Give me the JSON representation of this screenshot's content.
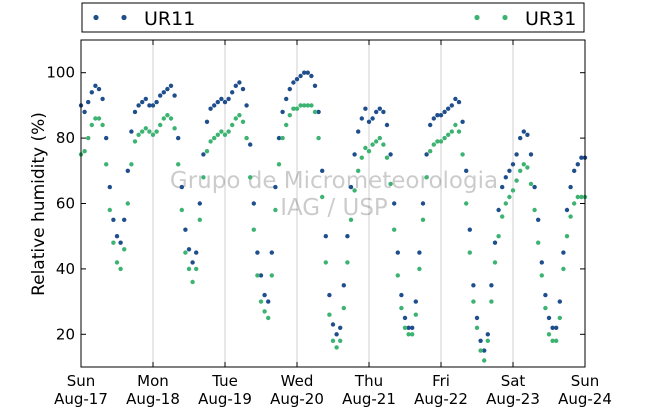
{
  "chart_data": {
    "type": "scatter",
    "ylabel": "Relative humidity (%)",
    "ylim": [
      10,
      110
    ],
    "yticks": [
      20,
      40,
      60,
      80,
      100
    ],
    "xlim": [
      0,
      7
    ],
    "xticks": [
      {
        "day": "Sun",
        "date": "Aug-17",
        "x": 0
      },
      {
        "day": "Mon",
        "date": "Aug-18",
        "x": 1
      },
      {
        "day": "Tue",
        "date": "Aug-19",
        "x": 2
      },
      {
        "day": "Wed",
        "date": "Aug-20",
        "x": 3
      },
      {
        "day": "Thu",
        "date": "Aug-21",
        "x": 4
      },
      {
        "day": "Fri",
        "date": "Aug-22",
        "x": 5
      },
      {
        "day": "Sat",
        "date": "Aug-23",
        "x": 6
      },
      {
        "day": "Sun",
        "date": "Aug-24",
        "x": 7
      }
    ],
    "grid": "vertical",
    "legend_position": "top",
    "watermark": [
      "Grupo de Micrometeorologia",
      "IAG / USP"
    ],
    "series": [
      {
        "name": "UR11",
        "color": "#1f4e8c",
        "points": [
          [
            0.0,
            90
          ],
          [
            0.05,
            88
          ],
          [
            0.1,
            91
          ],
          [
            0.15,
            94
          ],
          [
            0.2,
            96
          ],
          [
            0.25,
            95
          ],
          [
            0.3,
            92
          ],
          [
            0.35,
            80
          ],
          [
            0.4,
            65
          ],
          [
            0.45,
            55
          ],
          [
            0.5,
            50
          ],
          [
            0.55,
            48
          ],
          [
            0.6,
            55
          ],
          [
            0.65,
            70
          ],
          [
            0.7,
            82
          ],
          [
            0.75,
            88
          ],
          [
            0.8,
            90
          ],
          [
            0.85,
            91
          ],
          [
            0.9,
            92
          ],
          [
            0.95,
            90
          ],
          [
            1.0,
            90
          ],
          [
            1.05,
            91
          ],
          [
            1.1,
            93
          ],
          [
            1.15,
            94
          ],
          [
            1.2,
            95
          ],
          [
            1.25,
            96
          ],
          [
            1.3,
            93
          ],
          [
            1.35,
            80
          ],
          [
            1.4,
            65
          ],
          [
            1.45,
            52
          ],
          [
            1.5,
            46
          ],
          [
            1.55,
            42
          ],
          [
            1.6,
            45
          ],
          [
            1.65,
            60
          ],
          [
            1.7,
            75
          ],
          [
            1.75,
            85
          ],
          [
            1.8,
            89
          ],
          [
            1.85,
            90
          ],
          [
            1.9,
            91
          ],
          [
            1.95,
            92
          ],
          [
            2.0,
            91
          ],
          [
            2.05,
            92
          ],
          [
            2.1,
            94
          ],
          [
            2.15,
            96
          ],
          [
            2.2,
            97
          ],
          [
            2.25,
            95
          ],
          [
            2.3,
            90
          ],
          [
            2.35,
            78
          ],
          [
            2.4,
            60
          ],
          [
            2.45,
            45
          ],
          [
            2.5,
            38
          ],
          [
            2.55,
            32
          ],
          [
            2.6,
            30
          ],
          [
            2.65,
            45
          ],
          [
            2.7,
            65
          ],
          [
            2.75,
            80
          ],
          [
            2.8,
            88
          ],
          [
            2.85,
            92
          ],
          [
            2.9,
            95
          ],
          [
            2.95,
            97
          ],
          [
            3.0,
            98
          ],
          [
            3.05,
            99
          ],
          [
            3.1,
            100
          ],
          [
            3.15,
            100
          ],
          [
            3.2,
            99
          ],
          [
            3.25,
            96
          ],
          [
            3.3,
            88
          ],
          [
            3.35,
            70
          ],
          [
            3.4,
            50
          ],
          [
            3.45,
            32
          ],
          [
            3.5,
            23
          ],
          [
            3.55,
            20
          ],
          [
            3.6,
            22
          ],
          [
            3.65,
            35
          ],
          [
            3.7,
            50
          ],
          [
            3.75,
            65
          ],
          [
            3.8,
            75
          ],
          [
            3.85,
            82
          ],
          [
            3.9,
            86
          ],
          [
            3.95,
            89
          ],
          [
            4.0,
            85
          ],
          [
            4.05,
            86
          ],
          [
            4.1,
            88
          ],
          [
            4.15,
            89
          ],
          [
            4.2,
            88
          ],
          [
            4.25,
            84
          ],
          [
            4.3,
            75
          ],
          [
            4.35,
            60
          ],
          [
            4.4,
            45
          ],
          [
            4.45,
            32
          ],
          [
            4.5,
            25
          ],
          [
            4.55,
            22
          ],
          [
            4.6,
            22
          ],
          [
            4.65,
            30
          ],
          [
            4.7,
            45
          ],
          [
            4.75,
            60
          ],
          [
            4.8,
            75
          ],
          [
            4.85,
            84
          ],
          [
            4.9,
            86
          ],
          [
            4.95,
            87
          ],
          [
            5.0,
            87
          ],
          [
            5.05,
            88
          ],
          [
            5.1,
            89
          ],
          [
            5.15,
            90
          ],
          [
            5.2,
            92
          ],
          [
            5.25,
            91
          ],
          [
            5.3,
            85
          ],
          [
            5.35,
            70
          ],
          [
            5.4,
            52
          ],
          [
            5.45,
            35
          ],
          [
            5.5,
            25
          ],
          [
            5.55,
            18
          ],
          [
            5.6,
            15
          ],
          [
            5.65,
            20
          ],
          [
            5.7,
            35
          ],
          [
            5.75,
            48
          ],
          [
            5.8,
            58
          ],
          [
            5.85,
            65
          ],
          [
            5.9,
            68
          ],
          [
            5.95,
            70
          ],
          [
            6.0,
            72
          ],
          [
            6.05,
            75
          ],
          [
            6.1,
            80
          ],
          [
            6.15,
            82
          ],
          [
            6.2,
            81
          ],
          [
            6.25,
            75
          ],
          [
            6.3,
            65
          ],
          [
            6.35,
            55
          ],
          [
            6.4,
            42
          ],
          [
            6.45,
            32
          ],
          [
            6.5,
            25
          ],
          [
            6.55,
            22
          ],
          [
            6.6,
            22
          ],
          [
            6.65,
            30
          ],
          [
            6.7,
            45
          ],
          [
            6.75,
            58
          ],
          [
            6.8,
            65
          ],
          [
            6.85,
            70
          ],
          [
            6.9,
            72
          ],
          [
            6.95,
            74
          ],
          [
            7.0,
            74
          ]
        ]
      },
      {
        "name": "UR31",
        "color": "#3cb371",
        "points": [
          [
            0.0,
            75
          ],
          [
            0.05,
            76
          ],
          [
            0.1,
            80
          ],
          [
            0.15,
            84
          ],
          [
            0.2,
            86
          ],
          [
            0.25,
            86
          ],
          [
            0.3,
            84
          ],
          [
            0.35,
            72
          ],
          [
            0.4,
            58
          ],
          [
            0.45,
            48
          ],
          [
            0.5,
            42
          ],
          [
            0.55,
            40
          ],
          [
            0.6,
            46
          ],
          [
            0.65,
            60
          ],
          [
            0.7,
            72
          ],
          [
            0.75,
            79
          ],
          [
            0.8,
            81
          ],
          [
            0.85,
            82
          ],
          [
            0.9,
            83
          ],
          [
            0.95,
            82
          ],
          [
            1.0,
            81
          ],
          [
            1.05,
            82
          ],
          [
            1.1,
            84
          ],
          [
            1.15,
            86
          ],
          [
            1.2,
            87
          ],
          [
            1.25,
            86
          ],
          [
            1.3,
            83
          ],
          [
            1.35,
            72
          ],
          [
            1.4,
            58
          ],
          [
            1.45,
            45
          ],
          [
            1.5,
            40
          ],
          [
            1.55,
            36
          ],
          [
            1.6,
            40
          ],
          [
            1.65,
            55
          ],
          [
            1.7,
            68
          ],
          [
            1.75,
            76
          ],
          [
            1.8,
            79
          ],
          [
            1.85,
            80
          ],
          [
            1.9,
            81
          ],
          [
            1.95,
            82
          ],
          [
            2.0,
            81
          ],
          [
            2.05,
            82
          ],
          [
            2.1,
            84
          ],
          [
            2.15,
            86
          ],
          [
            2.2,
            87
          ],
          [
            2.25,
            85
          ],
          [
            2.3,
            80
          ],
          [
            2.35,
            68
          ],
          [
            2.4,
            52
          ],
          [
            2.45,
            38
          ],
          [
            2.5,
            30
          ],
          [
            2.55,
            27
          ],
          [
            2.6,
            25
          ],
          [
            2.65,
            38
          ],
          [
            2.7,
            58
          ],
          [
            2.75,
            72
          ],
          [
            2.8,
            80
          ],
          [
            2.85,
            84
          ],
          [
            2.9,
            87
          ],
          [
            2.95,
            89
          ],
          [
            3.0,
            89
          ],
          [
            3.05,
            90
          ],
          [
            3.1,
            90
          ],
          [
            3.15,
            90
          ],
          [
            3.2,
            90
          ],
          [
            3.25,
            88
          ],
          [
            3.3,
            80
          ],
          [
            3.35,
            62
          ],
          [
            3.4,
            42
          ],
          [
            3.45,
            26
          ],
          [
            3.5,
            18
          ],
          [
            3.55,
            16
          ],
          [
            3.6,
            18
          ],
          [
            3.65,
            28
          ],
          [
            3.7,
            42
          ],
          [
            3.75,
            55
          ],
          [
            3.8,
            64
          ],
          [
            3.85,
            70
          ],
          [
            3.9,
            74
          ],
          [
            3.95,
            77
          ],
          [
            4.0,
            76
          ],
          [
            4.05,
            78
          ],
          [
            4.1,
            79
          ],
          [
            4.15,
            80
          ],
          [
            4.2,
            78
          ],
          [
            4.25,
            74
          ],
          [
            4.3,
            66
          ],
          [
            4.35,
            52
          ],
          [
            4.4,
            38
          ],
          [
            4.45,
            28
          ],
          [
            4.5,
            22
          ],
          [
            4.55,
            20
          ],
          [
            4.6,
            20
          ],
          [
            4.65,
            26
          ],
          [
            4.7,
            40
          ],
          [
            4.75,
            55
          ],
          [
            4.8,
            68
          ],
          [
            4.85,
            76
          ],
          [
            4.9,
            78
          ],
          [
            4.95,
            79
          ],
          [
            5.0,
            79
          ],
          [
            5.05,
            80
          ],
          [
            5.1,
            81
          ],
          [
            5.15,
            82
          ],
          [
            5.2,
            84
          ],
          [
            5.25,
            82
          ],
          [
            5.3,
            75
          ],
          [
            5.35,
            60
          ],
          [
            5.4,
            45
          ],
          [
            5.45,
            30
          ],
          [
            5.5,
            22
          ],
          [
            5.55,
            15
          ],
          [
            5.6,
            12
          ],
          [
            5.65,
            18
          ],
          [
            5.7,
            30
          ],
          [
            5.75,
            42
          ],
          [
            5.8,
            50
          ],
          [
            5.85,
            56
          ],
          [
            5.9,
            60
          ],
          [
            5.95,
            62
          ],
          [
            6.0,
            64
          ],
          [
            6.05,
            67
          ],
          [
            6.1,
            70
          ],
          [
            6.15,
            72
          ],
          [
            6.2,
            71
          ],
          [
            6.25,
            66
          ],
          [
            6.3,
            58
          ],
          [
            6.35,
            48
          ],
          [
            6.4,
            38
          ],
          [
            6.45,
            28
          ],
          [
            6.5,
            20
          ],
          [
            6.55,
            18
          ],
          [
            6.6,
            18
          ],
          [
            6.65,
            25
          ],
          [
            6.7,
            40
          ],
          [
            6.75,
            50
          ],
          [
            6.8,
            56
          ],
          [
            6.85,
            60
          ],
          [
            6.9,
            62
          ],
          [
            6.95,
            62
          ],
          [
            7.0,
            62
          ]
        ]
      }
    ]
  }
}
